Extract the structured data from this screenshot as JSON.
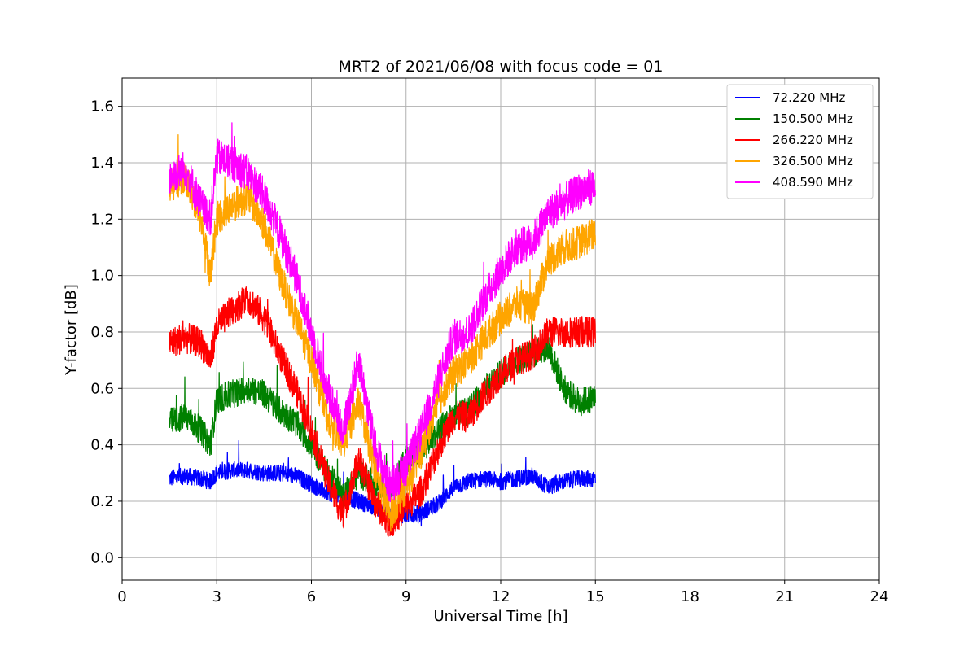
{
  "chart_data": {
    "type": "line",
    "title": "MRT2 of 2021/06/08 with focus code = 01",
    "xlabel": "Universal Time [h]",
    "ylabel": "Y-factor [dB]",
    "xlim": [
      0,
      24
    ],
    "ylim": [
      -0.08,
      1.7
    ],
    "xticks": [
      0,
      3,
      6,
      9,
      12,
      15,
      18,
      21,
      24
    ],
    "xtick_labels": [
      "0",
      "3",
      "6",
      "9",
      "12",
      "15",
      "18",
      "21",
      "24"
    ],
    "yticks": [
      0.0,
      0.2,
      0.4,
      0.6,
      0.8,
      1.0,
      1.2,
      1.4,
      1.6
    ],
    "ytick_labels": [
      "0.0",
      "0.2",
      "0.4",
      "0.6",
      "0.8",
      "1.0",
      "1.2",
      "1.4",
      "1.6"
    ],
    "grid": true,
    "legend_position": "top-right",
    "series": [
      {
        "name": " 72.220 MHz",
        "color": "#0000ff",
        "noise": 0.03,
        "x": [
          1.5,
          2.0,
          2.5,
          2.8,
          3.0,
          3.5,
          4.0,
          4.5,
          5.0,
          5.5,
          6.0,
          6.5,
          7.0,
          7.5,
          8.0,
          8.5,
          9.0,
          9.5,
          10.0,
          10.5,
          11.0,
          11.5,
          12.0,
          12.5,
          13.0,
          13.5,
          14.0,
          14.5,
          15.0
        ],
        "y": [
          0.28,
          0.29,
          0.28,
          0.27,
          0.3,
          0.31,
          0.31,
          0.3,
          0.3,
          0.29,
          0.26,
          0.23,
          0.22,
          0.2,
          0.18,
          0.16,
          0.15,
          0.16,
          0.19,
          0.25,
          0.27,
          0.28,
          0.27,
          0.28,
          0.29,
          0.25,
          0.27,
          0.28,
          0.28
        ]
      },
      {
        "name": "150.500 MHz",
        "color": "#008000",
        "noise": 0.05,
        "x": [
          1.5,
          2.0,
          2.5,
          2.8,
          3.0,
          3.5,
          4.0,
          4.5,
          5.0,
          5.5,
          6.0,
          6.5,
          7.0,
          7.5,
          8.0,
          8.5,
          9.0,
          9.5,
          10.0,
          10.5,
          11.0,
          11.5,
          12.0,
          12.5,
          13.0,
          13.5,
          14.0,
          14.5,
          15.0
        ],
        "y": [
          0.48,
          0.5,
          0.45,
          0.4,
          0.56,
          0.58,
          0.6,
          0.58,
          0.52,
          0.48,
          0.4,
          0.3,
          0.22,
          0.3,
          0.26,
          0.25,
          0.35,
          0.38,
          0.45,
          0.5,
          0.52,
          0.6,
          0.65,
          0.7,
          0.72,
          0.75,
          0.6,
          0.55,
          0.57
        ]
      },
      {
        "name": "266.220 MHz",
        "color": "#ff0000",
        "noise": 0.055,
        "x": [
          1.5,
          2.0,
          2.5,
          2.8,
          3.0,
          3.5,
          4.0,
          4.5,
          5.0,
          5.5,
          6.0,
          6.5,
          7.0,
          7.5,
          8.0,
          8.5,
          9.0,
          9.5,
          10.0,
          10.5,
          11.0,
          11.5,
          12.0,
          12.5,
          13.0,
          13.5,
          14.0,
          14.5,
          15.0
        ],
        "y": [
          0.76,
          0.78,
          0.76,
          0.7,
          0.82,
          0.88,
          0.92,
          0.85,
          0.72,
          0.6,
          0.45,
          0.28,
          0.15,
          0.35,
          0.2,
          0.12,
          0.18,
          0.24,
          0.38,
          0.5,
          0.5,
          0.58,
          0.65,
          0.7,
          0.72,
          0.8,
          0.8,
          0.8,
          0.8
        ]
      },
      {
        "name": "326.500 MHz",
        "color": "#ffa500",
        "noise": 0.06,
        "x": [
          1.5,
          2.0,
          2.5,
          2.8,
          3.0,
          3.5,
          4.0,
          4.5,
          5.0,
          5.5,
          6.0,
          6.5,
          7.0,
          7.5,
          8.0,
          8.5,
          9.0,
          9.5,
          10.0,
          10.5,
          11.0,
          11.5,
          12.0,
          12.5,
          13.0,
          13.5,
          14.0,
          14.5,
          15.0
        ],
        "y": [
          1.32,
          1.35,
          1.2,
          1.0,
          1.2,
          1.25,
          1.28,
          1.18,
          1.0,
          0.85,
          0.7,
          0.5,
          0.4,
          0.55,
          0.32,
          0.15,
          0.25,
          0.38,
          0.55,
          0.65,
          0.7,
          0.78,
          0.85,
          0.9,
          0.88,
          1.05,
          1.1,
          1.12,
          1.15
        ]
      },
      {
        "name": "408.590 MHz",
        "color": "#ff00ff",
        "noise": 0.065,
        "x": [
          1.5,
          2.0,
          2.5,
          2.8,
          3.0,
          3.5,
          4.0,
          4.5,
          5.0,
          5.5,
          6.0,
          6.5,
          7.0,
          7.5,
          8.0,
          8.5,
          9.0,
          9.5,
          10.0,
          10.5,
          11.0,
          11.5,
          12.0,
          12.5,
          13.0,
          13.5,
          14.0,
          14.5,
          15.0
        ],
        "y": [
          1.35,
          1.38,
          1.25,
          1.2,
          1.42,
          1.4,
          1.36,
          1.28,
          1.15,
          1.0,
          0.8,
          0.6,
          0.45,
          0.7,
          0.4,
          0.25,
          0.32,
          0.45,
          0.62,
          0.78,
          0.8,
          0.92,
          1.02,
          1.1,
          1.12,
          1.22,
          1.26,
          1.3,
          1.32
        ]
      }
    ]
  }
}
